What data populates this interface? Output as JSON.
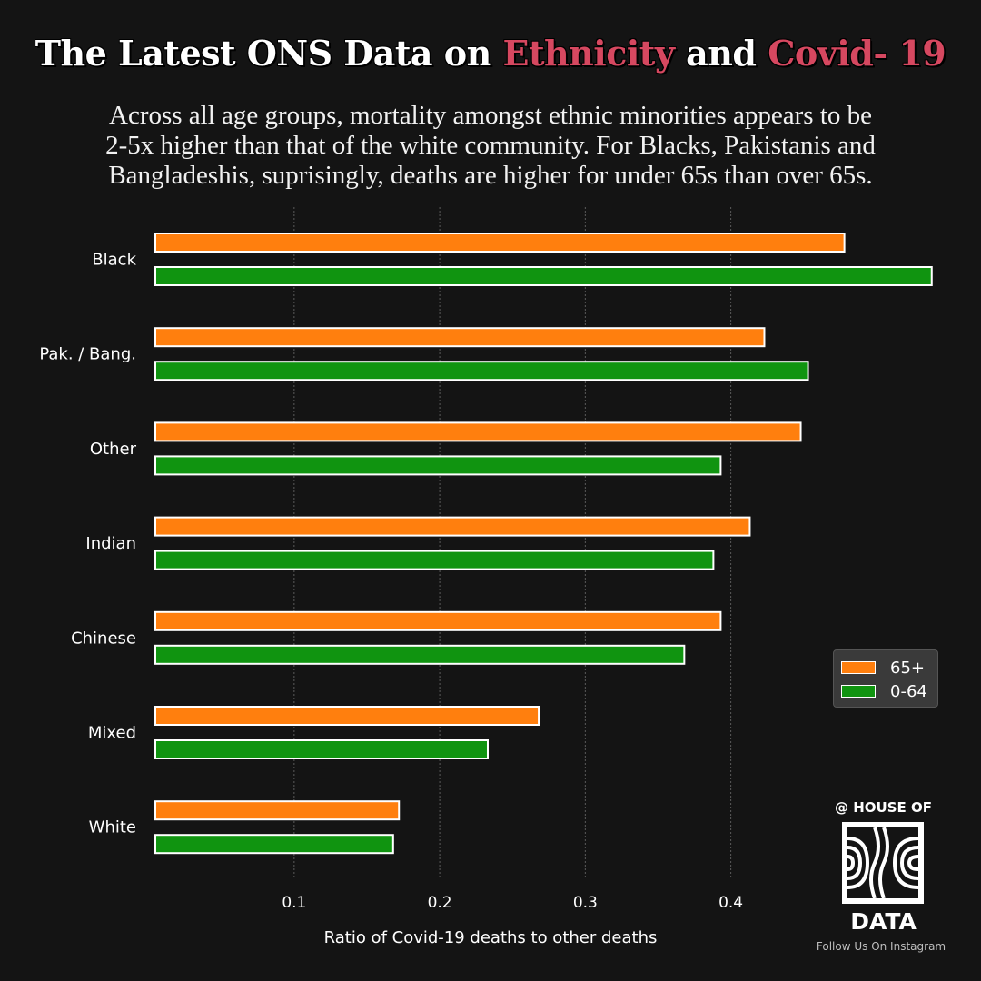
{
  "header": {
    "title_parts": [
      {
        "text": "The Latest ONS Data on ",
        "highlight": false
      },
      {
        "text": "Ethnicity",
        "highlight": true
      },
      {
        "text": " and ",
        "highlight": false
      },
      {
        "text": "Covid- 19",
        "highlight": true
      }
    ],
    "highlight_color": "#d64860",
    "subtitle_lines": [
      "Across all age groups, mortality amongst ethnic minorities appears to be",
      "2-5x higher than that of the white community. For Blacks, Pakistanis and",
      "Bangladeshis, suprisingly, deaths are higher for under 65s than over 65s."
    ]
  },
  "chart_data": {
    "type": "bar",
    "orientation": "horizontal",
    "categories": [
      "Black",
      "Pak. / Bang.",
      "Other",
      "Indian",
      "Chinese",
      "Mixed",
      "White"
    ],
    "series": [
      {
        "name": "65+",
        "color": "#ff7f0e",
        "values": [
          0.478,
          0.423,
          0.448,
          0.413,
          0.393,
          0.268,
          0.172
        ]
      },
      {
        "name": "0-64",
        "color": "#109410",
        "values": [
          0.538,
          0.453,
          0.393,
          0.388,
          0.368,
          0.233,
          0.168
        ]
      }
    ],
    "xlabel": "Ratio of Covid-19 deaths to other deaths",
    "ylabel": "",
    "xticks": [
      "0.1",
      "0.2",
      "0.3",
      "0.4"
    ],
    "tick_values": [
      0.1,
      0.2,
      0.3,
      0.4
    ],
    "xlim": [
      0.004,
      0.55
    ],
    "grid": "vertical dashed",
    "legend_position": "right"
  },
  "branding": {
    "top": "@ HOUSE OF",
    "bottom": "DATA",
    "follow": "Follow Us On Instagram"
  }
}
